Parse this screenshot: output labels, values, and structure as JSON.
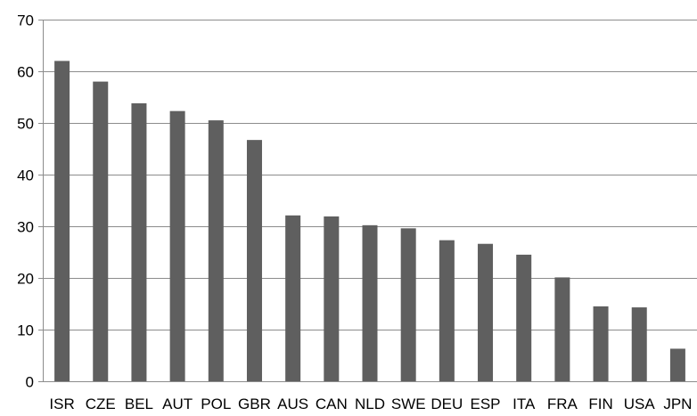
{
  "chart_data": {
    "type": "bar",
    "title": "",
    "xlabel": "",
    "ylabel": "",
    "categories": [
      "ISR",
      "CZE",
      "BEL",
      "AUT",
      "POL",
      "GBR",
      "AUS",
      "CAN",
      "NLD",
      "SWE",
      "DEU",
      "ESP",
      "ITA",
      "FRA",
      "FIN",
      "USA",
      "JPN"
    ],
    "values": [
      62,
      58,
      53.8,
      52.3,
      50.5,
      46.7,
      32.1,
      31.9,
      30.2,
      29.6,
      27.3,
      26.6,
      24.5,
      20.1,
      14.5,
      14.3,
      6.3
    ],
    "ylim": [
      0,
      70
    ],
    "yticks": [
      "0",
      "10",
      "20",
      "30",
      "40",
      "50",
      "60",
      "70"
    ],
    "grid": true,
    "colors": {
      "bar": "#5f5f5f",
      "grid": "#8c8c8c",
      "axis": "#8c8c8c"
    }
  }
}
